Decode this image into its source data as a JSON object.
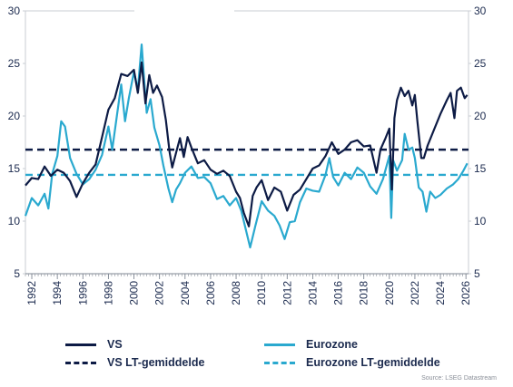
{
  "chart_data": {
    "type": "line",
    "title": "",
    "xlabel": "",
    "ylabel": "",
    "ylim": [
      5,
      30
    ],
    "yticks": [
      "5",
      "10",
      "15",
      "20",
      "25",
      "30"
    ],
    "xlim": [
      1991.5,
      2026.2
    ],
    "xticks": [
      "1992",
      "1994",
      "1996",
      "1998",
      "2000",
      "2002",
      "2004",
      "2006",
      "2008",
      "2010",
      "2012",
      "2014",
      "2016",
      "2018",
      "2020",
      "2022",
      "2024",
      "2026"
    ],
    "grid": false,
    "legend_position": "bottom",
    "series": [
      {
        "name": "VS",
        "color": "#0d1b45",
        "style": "solid",
        "points": [
          [
            1991.5,
            13.4
          ],
          [
            1992.0,
            14.1
          ],
          [
            1992.5,
            14.0
          ],
          [
            1993.0,
            15.2
          ],
          [
            1993.5,
            14.3
          ],
          [
            1994.0,
            14.9
          ],
          [
            1994.5,
            14.6
          ],
          [
            1995.0,
            13.8
          ],
          [
            1995.5,
            12.3
          ],
          [
            1996.0,
            13.6
          ],
          [
            1996.5,
            14.6
          ],
          [
            1997.0,
            15.4
          ],
          [
            1997.5,
            18.0
          ],
          [
            1998.0,
            20.6
          ],
          [
            1998.5,
            21.7
          ],
          [
            1999.0,
            24.0
          ],
          [
            1999.5,
            23.8
          ],
          [
            2000.0,
            24.4
          ],
          [
            2000.3,
            22.2
          ],
          [
            2000.6,
            25.1
          ],
          [
            2000.9,
            21.2
          ],
          [
            2001.2,
            23.9
          ],
          [
            2001.5,
            22.2
          ],
          [
            2001.8,
            22.9
          ],
          [
            2002.2,
            21.8
          ],
          [
            2002.5,
            19.6
          ],
          [
            2002.8,
            16.5
          ],
          [
            2003.0,
            15.1
          ],
          [
            2003.3,
            16.5
          ],
          [
            2003.6,
            17.9
          ],
          [
            2003.9,
            16.1
          ],
          [
            2004.2,
            18.0
          ],
          [
            2004.5,
            17.0
          ],
          [
            2005.0,
            15.5
          ],
          [
            2005.5,
            15.8
          ],
          [
            2006.0,
            14.9
          ],
          [
            2006.5,
            14.5
          ],
          [
            2007.0,
            14.8
          ],
          [
            2007.5,
            14.3
          ],
          [
            2008.0,
            12.8
          ],
          [
            2008.3,
            12.2
          ],
          [
            2008.6,
            10.8
          ],
          [
            2009.0,
            9.5
          ],
          [
            2009.3,
            12.4
          ],
          [
            2009.6,
            13.2
          ],
          [
            2010.0,
            13.9
          ],
          [
            2010.5,
            12.0
          ],
          [
            2011.0,
            13.2
          ],
          [
            2011.5,
            12.8
          ],
          [
            2012.0,
            11.0
          ],
          [
            2012.5,
            12.5
          ],
          [
            2013.0,
            13.0
          ],
          [
            2013.5,
            14.0
          ],
          [
            2014.0,
            15.0
          ],
          [
            2014.5,
            15.3
          ],
          [
            2015.0,
            16.2
          ],
          [
            2015.5,
            17.5
          ],
          [
            2016.0,
            16.4
          ],
          [
            2016.5,
            16.8
          ],
          [
            2017.0,
            17.5
          ],
          [
            2017.5,
            17.7
          ],
          [
            2018.0,
            17.1
          ],
          [
            2018.5,
            17.2
          ],
          [
            2019.0,
            14.6
          ],
          [
            2019.3,
            16.8
          ],
          [
            2019.7,
            17.9
          ],
          [
            2020.0,
            18.8
          ],
          [
            2020.2,
            13.0
          ],
          [
            2020.4,
            19.8
          ],
          [
            2020.6,
            21.5
          ],
          [
            2020.9,
            22.7
          ],
          [
            2021.2,
            21.9
          ],
          [
            2021.5,
            22.4
          ],
          [
            2021.8,
            21.0
          ],
          [
            2022.0,
            22.0
          ],
          [
            2022.2,
            19.5
          ],
          [
            2022.5,
            16.0
          ],
          [
            2022.7,
            16.0
          ],
          [
            2023.0,
            17.2
          ],
          [
            2023.5,
            18.7
          ],
          [
            2024.0,
            20.2
          ],
          [
            2024.5,
            21.5
          ],
          [
            2024.8,
            22.2
          ],
          [
            2025.1,
            19.8
          ],
          [
            2025.3,
            22.4
          ],
          [
            2025.6,
            22.7
          ],
          [
            2025.9,
            21.7
          ],
          [
            2026.1,
            22.0
          ]
        ]
      },
      {
        "name": "VS LT-gemiddelde",
        "color": "#0d1b45",
        "style": "dashed",
        "value": 16.8
      },
      {
        "name": "Eurozone",
        "color": "#2aa9cf",
        "style": "solid",
        "points": [
          [
            1991.5,
            10.5
          ],
          [
            1992.0,
            12.2
          ],
          [
            1992.5,
            11.5
          ],
          [
            1993.0,
            12.6
          ],
          [
            1993.3,
            11.2
          ],
          [
            1993.6,
            14.5
          ],
          [
            1994.0,
            16.2
          ],
          [
            1994.3,
            19.5
          ],
          [
            1994.6,
            19.0
          ],
          [
            1995.0,
            16.0
          ],
          [
            1995.5,
            14.5
          ],
          [
            1996.0,
            13.5
          ],
          [
            1996.5,
            14.0
          ],
          [
            1997.0,
            14.9
          ],
          [
            1997.5,
            16.3
          ],
          [
            1998.0,
            19.0
          ],
          [
            1998.3,
            16.8
          ],
          [
            1998.6,
            19.5
          ],
          [
            1999.0,
            23.0
          ],
          [
            1999.3,
            19.5
          ],
          [
            1999.6,
            21.7
          ],
          [
            2000.0,
            24.2
          ],
          [
            2000.3,
            22.5
          ],
          [
            2000.6,
            26.8
          ],
          [
            2000.8,
            23.4
          ],
          [
            2001.0,
            20.3
          ],
          [
            2001.3,
            21.6
          ],
          [
            2001.6,
            18.9
          ],
          [
            2002.0,
            17.2
          ],
          [
            2002.3,
            15.3
          ],
          [
            2002.7,
            13.1
          ],
          [
            2003.0,
            11.8
          ],
          [
            2003.3,
            13.0
          ],
          [
            2003.6,
            13.6
          ],
          [
            2004.0,
            14.6
          ],
          [
            2004.5,
            15.2
          ],
          [
            2005.0,
            14.1
          ],
          [
            2005.5,
            14.2
          ],
          [
            2006.0,
            13.6
          ],
          [
            2006.5,
            12.1
          ],
          [
            2007.0,
            12.4
          ],
          [
            2007.5,
            11.5
          ],
          [
            2008.0,
            12.2
          ],
          [
            2008.4,
            11.0
          ],
          [
            2008.8,
            9.0
          ],
          [
            2009.1,
            7.5
          ],
          [
            2009.5,
            9.5
          ],
          [
            2010.0,
            11.9
          ],
          [
            2010.5,
            11.0
          ],
          [
            2011.0,
            10.5
          ],
          [
            2011.4,
            9.6
          ],
          [
            2011.8,
            8.3
          ],
          [
            2012.2,
            9.9
          ],
          [
            2012.6,
            10.0
          ],
          [
            2013.0,
            11.8
          ],
          [
            2013.5,
            13.1
          ],
          [
            2014.0,
            12.9
          ],
          [
            2014.5,
            12.8
          ],
          [
            2015.0,
            14.4
          ],
          [
            2015.3,
            16.0
          ],
          [
            2015.6,
            14.2
          ],
          [
            2016.0,
            13.4
          ],
          [
            2016.5,
            14.6
          ],
          [
            2017.0,
            14.0
          ],
          [
            2017.5,
            15.1
          ],
          [
            2018.0,
            14.6
          ],
          [
            2018.5,
            13.3
          ],
          [
            2019.0,
            12.6
          ],
          [
            2019.5,
            14.0
          ],
          [
            2020.0,
            16.2
          ],
          [
            2020.15,
            10.3
          ],
          [
            2020.3,
            15.8
          ],
          [
            2020.6,
            14.8
          ],
          [
            2021.0,
            15.8
          ],
          [
            2021.2,
            18.3
          ],
          [
            2021.5,
            16.8
          ],
          [
            2021.8,
            17.0
          ],
          [
            2022.0,
            16.0
          ],
          [
            2022.3,
            13.2
          ],
          [
            2022.6,
            12.8
          ],
          [
            2022.9,
            10.9
          ],
          [
            2023.2,
            12.8
          ],
          [
            2023.6,
            12.2
          ],
          [
            2024.0,
            12.5
          ],
          [
            2024.5,
            13.1
          ],
          [
            2025.0,
            13.5
          ],
          [
            2025.4,
            14.0
          ],
          [
            2025.8,
            14.8
          ],
          [
            2026.1,
            15.5
          ]
        ]
      },
      {
        "name": "Eurozone LT-gemiddelde",
        "color": "#2aa9cf",
        "style": "dashed",
        "value": 14.4
      }
    ]
  },
  "legend": {
    "vs": "VS",
    "vs_lt": "VS LT-gemiddelde",
    "ez": "Eurozone",
    "ez_lt": "Eurozone LT-gemiddelde"
  },
  "colors": {
    "navy": "#0d1b45",
    "teal": "#2aa9cf",
    "axis": "#c8ccd3"
  },
  "source": "Source: LSEG Datastream"
}
